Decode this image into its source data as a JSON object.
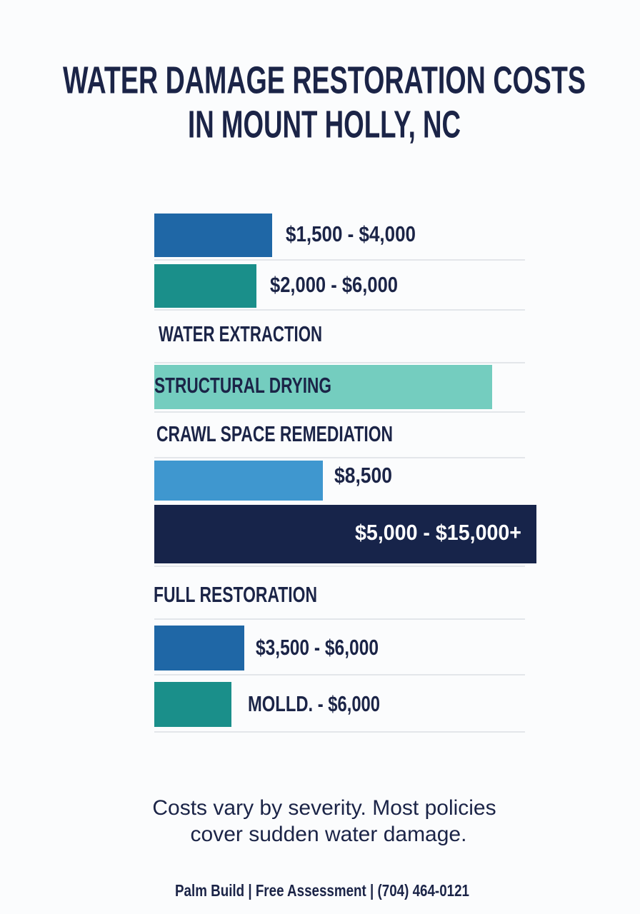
{
  "header": {
    "title_lines": [
      "WATER DAMAGE RESTORATION COSTS",
      "IN MOUNT HOLLY, NC"
    ]
  },
  "rows": [
    {
      "text": "$1,500 - $4,000"
    },
    {
      "text": "$2,000 - $6,000"
    },
    {
      "text": "WATER EXTRACTION"
    },
    {
      "text": "STRUCTURAL DRYING"
    },
    {
      "text": "CRAWL SPACE REMEDIATION"
    },
    {
      "text": "$8,500"
    },
    {
      "text": "$5,000 - $15,000+"
    },
    {
      "text": "FULL RESTORATION"
    },
    {
      "text": "$3,500 - $6,000"
    },
    {
      "text": "MOLLD. - $6,000"
    }
  ],
  "note_lines": [
    "Costs vary by severity. Most policies",
    "cover sudden water damage."
  ],
  "footer": "Palm Build | Free Assessment | (704) 464-0121"
}
